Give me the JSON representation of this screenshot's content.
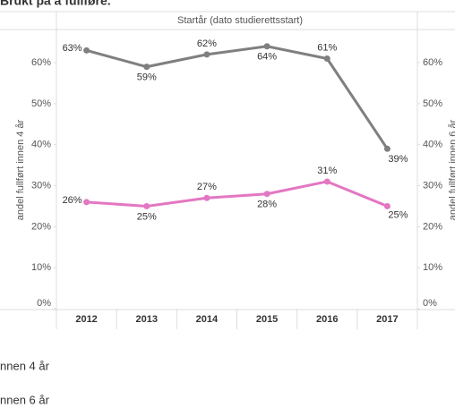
{
  "chart_data": {
    "type": "line",
    "title": "Brukt på å fullføre.",
    "header": "Startår (dato studierettsstart)",
    "ylabel": "andel fullført innen 4 år",
    "y2label": "andel fullført innen 6 år",
    "categories": [
      "2012",
      "2013",
      "2014",
      "2015",
      "2016",
      "2017"
    ],
    "series": [
      {
        "name": "nnen 6 år",
        "color": "#7f7f7f",
        "axis": "y2",
        "values": [
          63,
          59,
          62,
          64,
          61,
          39
        ],
        "value_labels": [
          "63%",
          "59%",
          "62%",
          "64%",
          "61%",
          "39%"
        ]
      },
      {
        "name": "nnen 4 år",
        "color": "#e377c2",
        "values": [
          26,
          25,
          27,
          28,
          31,
          25
        ],
        "value_labels": [
          "26%",
          "25%",
          "27%",
          "28%",
          "31%",
          "25%"
        ]
      }
    ],
    "ylim": [
      0,
      67
    ],
    "yticks": [
      {
        "value": 0,
        "label": "0%"
      },
      {
        "value": 10,
        "label": "10%"
      },
      {
        "value": 20,
        "label": "20%"
      },
      {
        "value": 30,
        "label": "30%"
      },
      {
        "value": 40,
        "label": "40%"
      },
      {
        "value": 50,
        "label": "50%"
      },
      {
        "value": 60,
        "label": "60%"
      }
    ],
    "y2lim": [
      0,
      67
    ],
    "y2ticks": [
      {
        "value": 0,
        "label": "0%"
      },
      {
        "value": 10,
        "label": "10%"
      },
      {
        "value": 20,
        "label": "20%"
      },
      {
        "value": 30,
        "label": "30%"
      },
      {
        "value": 40,
        "label": "40%"
      },
      {
        "value": 50,
        "label": "50%"
      },
      {
        "value": 60,
        "label": "60%"
      }
    ]
  }
}
